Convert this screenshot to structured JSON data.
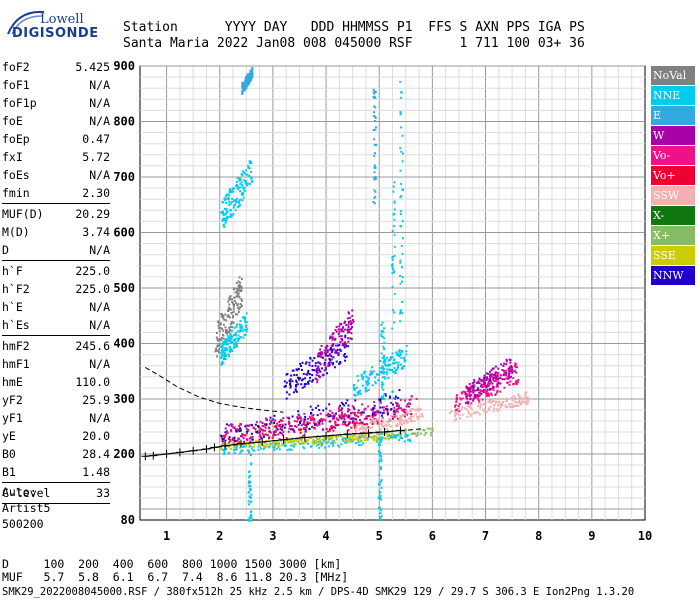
{
  "logo": {
    "line1": "Lowell",
    "line2": "DIGISONDE"
  },
  "header": {
    "line1": "Station      YYYY DAY   DDD HHMMSS P1  FFS S AXN PPS IGA PS",
    "line2": "Santa Maria 2022 Jan08 008 045000 RSF      1 711 100 03+ 36"
  },
  "params": [
    {
      "label": "foF2",
      "value": "5.425"
    },
    {
      "label": "foF1",
      "value": "N/A"
    },
    {
      "label": "foF1p",
      "value": "N/A"
    },
    {
      "label": "foE",
      "value": "N/A"
    },
    {
      "label": "foEp",
      "value": "0.47"
    },
    {
      "label": "fxI",
      "value": "5.72"
    },
    {
      "label": "foEs",
      "value": "N/A"
    },
    {
      "label": "fmin",
      "value": "2.30"
    },
    {
      "sep": true
    },
    {
      "label": "MUF(D)",
      "value": "20.29"
    },
    {
      "label": "M(D)",
      "value": "3.74"
    },
    {
      "label": "D",
      "value": "N/A"
    },
    {
      "sep": true
    },
    {
      "label": "h`F",
      "value": "225.0"
    },
    {
      "label": "h`F2",
      "value": "225.0"
    },
    {
      "label": "h`E",
      "value": "N/A"
    },
    {
      "label": "h`Es",
      "value": "N/A"
    },
    {
      "sep": true
    },
    {
      "label": "hmF2",
      "value": "245.6"
    },
    {
      "label": "hmF1",
      "value": "N/A"
    },
    {
      "label": "hmE",
      "value": "110.0"
    },
    {
      "label": "yF2",
      "value": "25.9"
    },
    {
      "label": "yF1",
      "value": "N/A"
    },
    {
      "label": "yE",
      "value": "20.0"
    },
    {
      "label": "B0",
      "value": "28.4"
    },
    {
      "label": "B1",
      "value": "1.48"
    },
    {
      "sep": true
    },
    {
      "label": "C-level",
      "value": "33"
    },
    {
      "sep": true
    }
  ],
  "auto": {
    "line1": "Auto:",
    "line2": "Artist5",
    "line3": "500200"
  },
  "legend": [
    {
      "label": "NoVal",
      "color": "#808080"
    },
    {
      "label": "NNE",
      "color": "#00ccee"
    },
    {
      "label": "E",
      "color": "#33aadd"
    },
    {
      "label": "W",
      "color": "#aa00aa"
    },
    {
      "label": "Vo-",
      "color": "#ee1188"
    },
    {
      "label": "Vo+",
      "color": "#ee0033"
    },
    {
      "label": "SSW",
      "color": "#f4b0b0"
    },
    {
      "label": "X-",
      "color": "#117711"
    },
    {
      "label": "X+",
      "color": "#88bb66"
    },
    {
      "label": "SSE",
      "color": "#cccc00"
    },
    {
      "label": "NNW",
      "color": "#2200cc"
    }
  ],
  "bottom": {
    "line1": "D     100  200  400  600  800 1000 1500 3000 [km]",
    "line2": "MUF   5.7  5.8  6.1  6.7  7.4  8.6 11.8 20.3 [MHz]"
  },
  "footer": "SMK29_2022008045000.RSF / 380fx512h 25 kHz 2.5 km / DPS-4D SMK29 129 / 29.7 S 306.3 E Ion2Png 1.3.20",
  "chart_data": {
    "type": "scatter",
    "title": "",
    "xlabel": "",
    "ylabel": "",
    "xlim": [
      0.5,
      10
    ],
    "ylim": [
      80,
      900
    ],
    "xticks": [
      1,
      2,
      3,
      4,
      5,
      6,
      7,
      8,
      9,
      10
    ],
    "yticks": [
      80,
      200,
      300,
      400,
      500,
      600,
      700,
      800,
      900
    ],
    "grid": true,
    "legend_position": "right",
    "trace_points": [
      [
        0.6,
        196
      ],
      [
        0.75,
        197
      ],
      [
        1.0,
        200
      ],
      [
        1.25,
        203
      ],
      [
        1.5,
        206
      ],
      [
        1.75,
        209
      ],
      [
        1.9,
        212
      ],
      [
        2.1,
        215
      ],
      [
        2.4,
        219
      ],
      [
        2.8,
        222
      ],
      [
        3.2,
        226
      ],
      [
        3.6,
        230
      ],
      [
        4.0,
        233
      ],
      [
        4.4,
        236
      ],
      [
        4.8,
        238
      ],
      [
        5.1,
        240
      ],
      [
        5.4,
        243
      ]
    ],
    "dashed_curves": [
      {
        "name": "",
        "points": [
          [
            0.6,
            357
          ],
          [
            0.9,
            340
          ],
          [
            1.2,
            322
          ],
          [
            1.6,
            304
          ],
          [
            2.0,
            292
          ],
          [
            2.4,
            285
          ],
          [
            2.8,
            280
          ],
          [
            3.2,
            276
          ]
        ]
      },
      {
        "name": "",
        "points": [
          [
            0.6,
            196
          ],
          [
            1.0,
            200
          ],
          [
            1.5,
            206
          ],
          [
            2.0,
            213
          ],
          [
            2.5,
            219
          ],
          [
            3.0,
            224
          ],
          [
            3.5,
            229
          ],
          [
            4.0,
            233
          ],
          [
            4.5,
            237
          ],
          [
            5.0,
            240
          ],
          [
            5.5,
            243
          ],
          [
            5.8,
            246
          ]
        ]
      }
    ],
    "clusters": [
      {
        "series": "Vo+",
        "x": [
          2.0,
          5.6
        ],
        "y": [
          215,
          290
        ]
      },
      {
        "series": "W",
        "x": [
          2.0,
          5.6
        ],
        "y": [
          220,
          300
        ]
      },
      {
        "series": "NNW",
        "x": [
          2.0,
          5.4
        ],
        "y": [
          215,
          320
        ]
      },
      {
        "series": "Vo-",
        "x": [
          2.1,
          5.7
        ],
        "y": [
          220,
          310
        ]
      },
      {
        "series": "SSW",
        "x": [
          4.5,
          5.8
        ],
        "y": [
          230,
          290
        ]
      },
      {
        "series": "X+",
        "x": [
          3.0,
          6.0
        ],
        "y": [
          215,
          250
        ]
      },
      {
        "series": "NNE",
        "x": [
          2.0,
          5.6
        ],
        "y": [
          200,
          240
        ]
      },
      {
        "series": "SSE",
        "x": [
          2.0,
          5.3
        ],
        "y": [
          210,
          240
        ]
      },
      {
        "series": "SSW",
        "x": [
          6.3,
          7.8
        ],
        "y": [
          260,
          315
        ]
      },
      {
        "series": "Vo-",
        "x": [
          6.4,
          7.6
        ],
        "y": [
          270,
          370
        ]
      },
      {
        "series": "W",
        "x": [
          6.6,
          7.5
        ],
        "y": [
          290,
          380
        ]
      },
      {
        "series": "NNE",
        "x": [
          2.0,
          2.6
        ],
        "y": [
          600,
          740
        ]
      },
      {
        "series": "NoVal",
        "x": [
          1.9,
          2.4
        ],
        "y": [
          370,
          530
        ]
      },
      {
        "series": "NNE",
        "x": [
          2.0,
          2.5
        ],
        "y": [
          360,
          460
        ]
      },
      {
        "series": "NNE",
        "x": [
          4.5,
          5.5
        ],
        "y": [
          300,
          400
        ]
      },
      {
        "series": "NNW",
        "x": [
          3.2,
          4.4
        ],
        "y": [
          300,
          420
        ]
      },
      {
        "series": "W",
        "x": [
          3.8,
          4.5
        ],
        "y": [
          330,
          470
        ]
      },
      {
        "series": "E",
        "x": [
          2.4,
          2.6
        ],
        "y": [
          850,
          900
        ]
      }
    ],
    "columns": [
      {
        "series": "NNE",
        "x": 5.0,
        "y": [
          80,
          240
        ]
      },
      {
        "series": "NNE",
        "x": 5.05,
        "y": [
          300,
          450
        ]
      },
      {
        "series": "NNE",
        "x": 5.25,
        "y": [
          300,
          700
        ]
      },
      {
        "series": "NNE",
        "x": 5.4,
        "y": [
          440,
          880
        ]
      },
      {
        "series": "E",
        "x": 4.9,
        "y": [
          640,
          860
        ]
      },
      {
        "series": "NNE",
        "x": 2.55,
        "y": [
          80,
          210
        ]
      }
    ]
  }
}
